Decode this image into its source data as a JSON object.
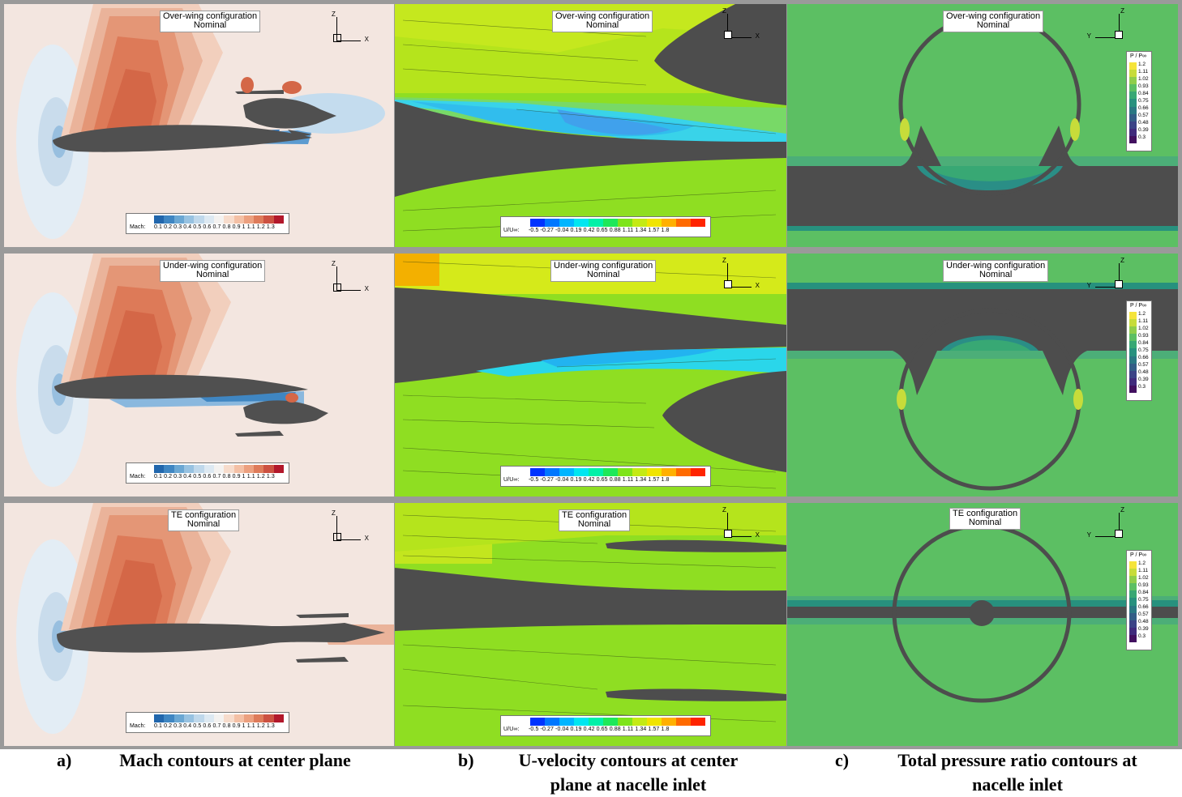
{
  "rows": [
    {
      "mach_title": [
        "Over-wing configuration",
        "Nominal"
      ],
      "u_title": [
        "Over-wing configuration",
        "Nominal"
      ],
      "p_title": [
        "Over-wing configuration",
        "Nominal"
      ]
    },
    {
      "mach_title": [
        "Under-wing configuration",
        "Nominal"
      ],
      "u_title": [
        "Under-wing configuration",
        "Nominal"
      ],
      "p_title": [
        "Under-wing configuration",
        "Nominal"
      ]
    },
    {
      "mach_title": [
        "TE configuration",
        "Nominal"
      ],
      "u_title": [
        "TE configuration",
        "Nominal"
      ],
      "p_title": [
        "TE configuration",
        "Nominal"
      ]
    }
  ],
  "axes": {
    "z": "Z",
    "x": "X",
    "y": "Y"
  },
  "mach_legend": {
    "label": "Mach:",
    "ticks": [
      "0.1",
      "0.2",
      "0.3",
      "0.4",
      "0.5",
      "0.6",
      "0.7",
      "0.8",
      "0.9",
      "1",
      "1.1",
      "1.2",
      "1.3"
    ],
    "tick_text": "0.1 0.2 0.3 0.4 0.5 0.6 0.7 0.8 0.9   1   1.1 1.2 1.3",
    "colors": [
      "#2166ac",
      "#3f86c2",
      "#6aa7d3",
      "#97c2e1",
      "#bfd8eb",
      "#dde9f2",
      "#f4f2f0",
      "#f7dccc",
      "#f4c0a5",
      "#eca07f",
      "#de7b5a",
      "#cc5141",
      "#b2182b"
    ]
  },
  "u_legend": {
    "label": "U/U∞:",
    "tick_text": "-0.5  -0.27 -0.04  0.19  0.42  0.65  0.88  1.11  1.34  1.57   1.8",
    "colors": [
      "#0033ff",
      "#0077ff",
      "#00b5ff",
      "#00e6f0",
      "#00f0a8",
      "#1ee85a",
      "#7ee41a",
      "#c4ea14",
      "#f0e400",
      "#ffb000",
      "#ff6a00",
      "#ff2400"
    ]
  },
  "p_legend": {
    "label": "P / P∞",
    "ticks": [
      "1.2",
      "1.11",
      "1.02",
      "0.93",
      "0.84",
      "0.75",
      "0.66",
      "0.57",
      "0.48",
      "0.39",
      "0.3"
    ],
    "colors": [
      "#f5e43a",
      "#c7dc3a",
      "#8fce4b",
      "#5cbf63",
      "#38a874",
      "#27917e",
      "#2a7883",
      "#335d86",
      "#3b4386",
      "#402a7c",
      "#42105f"
    ]
  },
  "captions": [
    {
      "letter": "a)",
      "lines": [
        "Mach contours at center plane"
      ]
    },
    {
      "letter": "b)",
      "lines": [
        "U-velocity contours at center",
        "plane at nacelle inlet"
      ]
    },
    {
      "letter": "c)",
      "lines": [
        "Total pressure ratio contours at",
        "nacelle inlet"
      ]
    }
  ]
}
